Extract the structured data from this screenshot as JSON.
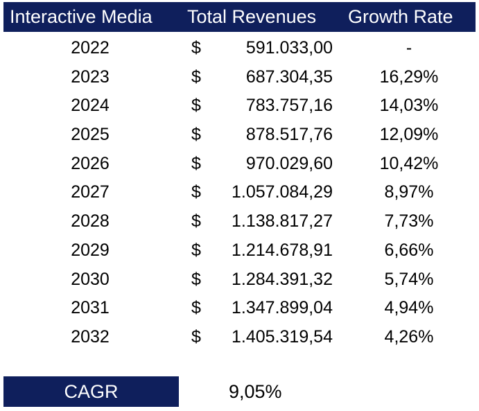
{
  "header": {
    "col1": "Interactive Media",
    "col2": "Total Revenues",
    "col3": "Growth Rate"
  },
  "rows": [
    {
      "year": "2022",
      "currency": "$",
      "revenue": "591.033,00",
      "growth": "-"
    },
    {
      "year": "2023",
      "currency": "$",
      "revenue": "687.304,35",
      "growth": "16,29%"
    },
    {
      "year": "2024",
      "currency": "$",
      "revenue": "783.757,16",
      "growth": "14,03%"
    },
    {
      "year": "2025",
      "currency": "$",
      "revenue": "878.517,76",
      "growth": "12,09%"
    },
    {
      "year": "2026",
      "currency": "$",
      "revenue": "970.029,60",
      "growth": "10,42%"
    },
    {
      "year": "2027",
      "currency": "$",
      "revenue": "1.057.084,29",
      "growth": "8,97%"
    },
    {
      "year": "2028",
      "currency": "$",
      "revenue": "1.138.817,27",
      "growth": "7,73%"
    },
    {
      "year": "2029",
      "currency": "$",
      "revenue": "1.214.678,91",
      "growth": "6,66%"
    },
    {
      "year": "2030",
      "currency": "$",
      "revenue": "1.284.391,32",
      "growth": "5,74%"
    },
    {
      "year": "2031",
      "currency": "$",
      "revenue": "1.347.899,04",
      "growth": "4,94%"
    },
    {
      "year": "2032",
      "currency": "$",
      "revenue": "1.405.319,54",
      "growth": "4,26%"
    }
  ],
  "cagr": {
    "label": "CAGR",
    "value": "9,05%"
  },
  "colors": {
    "header_bg": "#0f1f5c",
    "header_text": "#ffffff"
  }
}
